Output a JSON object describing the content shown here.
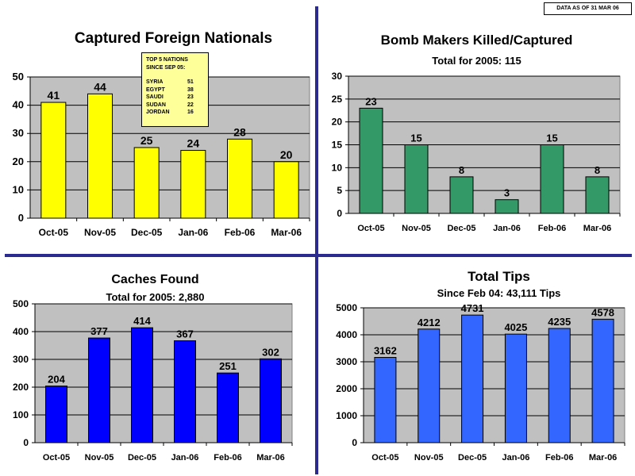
{
  "stamp": "DATA AS OF 31 MAR 06",
  "note": {
    "heading_1": "TOP 5 NATIONS",
    "heading_2": "SINCE SEP 05:",
    "rows": [
      {
        "name": "SYRIA",
        "value": "51"
      },
      {
        "name": "EGYPT",
        "value": "38"
      },
      {
        "name": "SAUDI",
        "value": "23"
      },
      {
        "name": "SUDAN",
        "value": "22"
      },
      {
        "name": "JORDAN",
        "value": "16"
      }
    ]
  },
  "chart_data": [
    {
      "type": "bar",
      "title": "Captured Foreign Nationals",
      "subtitle": "",
      "categories": [
        "Oct-05",
        "Nov-05",
        "Dec-05",
        "Jan-06",
        "Feb-06",
        "Mar-06"
      ],
      "values": [
        41,
        44,
        25,
        24,
        28,
        20
      ],
      "ylim": [
        0,
        50
      ],
      "yticks": [
        0,
        10,
        20,
        30,
        40,
        50
      ],
      "grid": true,
      "color": "#ffff00"
    },
    {
      "type": "bar",
      "title": "Bomb Makers Killed/Captured",
      "subtitle": "Total for 2005:  115",
      "categories": [
        "Oct-05",
        "Nov-05",
        "Dec-05",
        "Jan-06",
        "Feb-06",
        "Mar-06"
      ],
      "values": [
        23,
        15,
        8,
        3,
        15,
        8
      ],
      "ylim": [
        0,
        30
      ],
      "yticks": [
        0,
        5,
        10,
        15,
        20,
        25,
        30
      ],
      "grid": true,
      "color": "#339966"
    },
    {
      "type": "bar",
      "title": "Caches Found",
      "subtitle": "Total for 2005:  2,880",
      "categories": [
        "Oct-05",
        "Nov-05",
        "Dec-05",
        "Jan-06",
        "Feb-06",
        "Mar-06"
      ],
      "values": [
        204,
        377,
        414,
        367,
        251,
        302
      ],
      "ylim": [
        0,
        500
      ],
      "yticks": [
        0,
        100,
        200,
        300,
        400,
        500
      ],
      "grid": true,
      "color": "#0000ff"
    },
    {
      "type": "bar",
      "title": "Total Tips",
      "subtitle": "Since Feb 04:  43,111 Tips",
      "categories": [
        "Oct-05",
        "Nov-05",
        "Dec-05",
        "Jan-06",
        "Feb-06",
        "Mar-06"
      ],
      "values": [
        3162,
        4212,
        4731,
        4025,
        4235,
        4578
      ],
      "ylim": [
        0,
        5000
      ],
      "yticks": [
        0,
        1000,
        2000,
        3000,
        4000,
        5000
      ],
      "grid": true,
      "color": "#3366ff"
    }
  ]
}
